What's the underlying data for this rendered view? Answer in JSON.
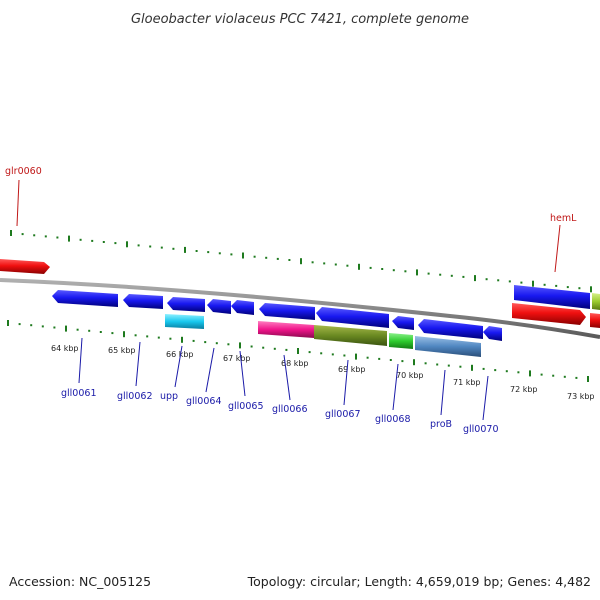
{
  "title": "Gloeobacter violaceus PCC 7421, complete genome",
  "footer": {
    "accession": "Accession: NC_005125",
    "topology": "Topology: circular; Length: 4,659,019 bp; Genes: 4,482"
  },
  "colors": {
    "tick": "#1e7a1e",
    "backbone": "#8a8a8a",
    "label_blue": "#1a1aa8",
    "label_red": "#c01818"
  },
  "kbp_labels": [
    "64 kbp",
    "65 kbp",
    "66 kbp",
    "67 kbp",
    "68 kbp",
    "69 kbp",
    "70 kbp",
    "71 kbp",
    "72 kbp",
    "73 kbp"
  ],
  "genes": [
    {
      "name": "glr0060",
      "strand": "forward",
      "color": "red"
    },
    {
      "name": "gll0061",
      "strand": "reverse",
      "color": "blue"
    },
    {
      "name": "gll0062",
      "strand": "reverse",
      "color": "blue"
    },
    {
      "name": "upp",
      "strand": "reverse",
      "color": "blue"
    },
    {
      "name": "gll0064",
      "strand": "reverse",
      "color": "blue"
    },
    {
      "name": "gll0065",
      "strand": "reverse",
      "color": "blue"
    },
    {
      "name": "gll0066",
      "strand": "reverse",
      "color": "blue"
    },
    {
      "name": "gll0067",
      "strand": "reverse",
      "color": "blue"
    },
    {
      "name": "gll0068",
      "strand": "reverse",
      "color": "blue"
    },
    {
      "name": "proB",
      "strand": "reverse",
      "color": "blue"
    },
    {
      "name": "gll0070",
      "strand": "reverse",
      "color": "blue"
    },
    {
      "name": "hemL",
      "strand": "forward",
      "color": "red"
    }
  ]
}
